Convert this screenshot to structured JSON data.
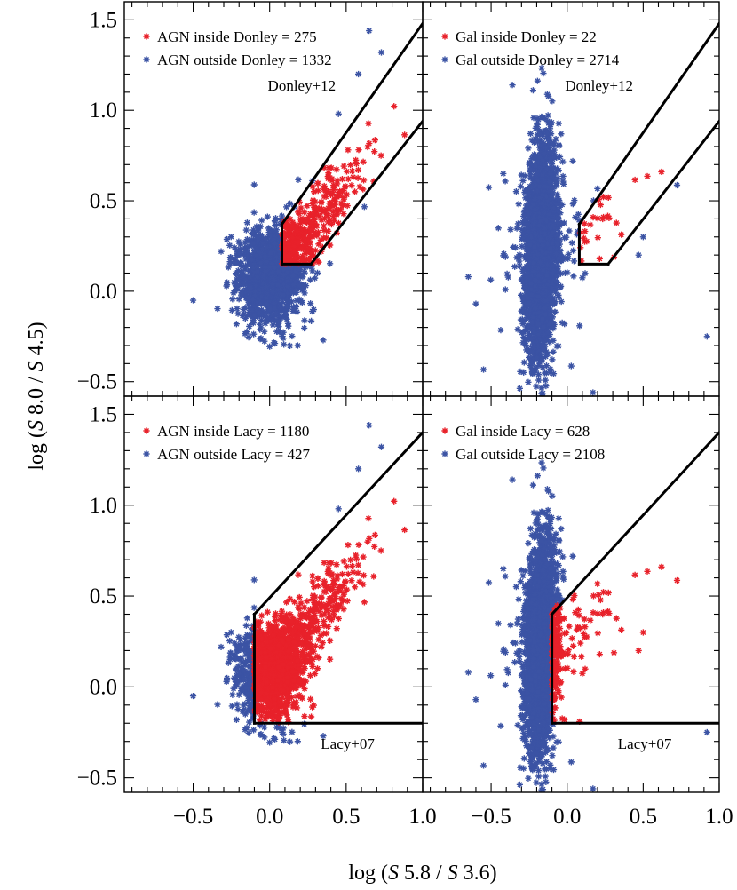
{
  "chart_data": {
    "type": "scatter",
    "xlabel": "log (S 5.8 / S 3.6)",
    "ylabel": "log (S 8.0 / S 4.5)",
    "xlim": [
      -0.95,
      1.0
    ],
    "ylim": [
      -0.58,
      1.6
    ],
    "xticks": [
      "−0.5",
      "0.0",
      "0.5",
      "1.0"
    ],
    "yticks": [
      "−0.5",
      "0.0",
      "0.5",
      "1.0",
      "1.5"
    ],
    "colors": {
      "inside": "#e8212a",
      "outside": "#3b53a4"
    },
    "panels": [
      {
        "id": "agn-donley",
        "population": "AGN",
        "legend": [
          {
            "text": "AGN inside Donley = 275",
            "color": "#e8212a",
            "symbol": "*"
          },
          {
            "text": "AGN outside Donley = 1332",
            "color": "#3b53a4",
            "symbol": "*"
          }
        ],
        "region_label": "Donley+12",
        "region_type": "donley",
        "counts": {
          "inside": 275,
          "outside": 1332
        }
      },
      {
        "id": "gal-donley",
        "population": "Gal",
        "legend": [
          {
            "text": "Gal inside Donley = 22",
            "color": "#e8212a",
            "symbol": "*"
          },
          {
            "text": "Gal outside Donley = 2714",
            "color": "#3b53a4",
            "symbol": "*"
          }
        ],
        "region_label": "Donley+12",
        "region_type": "donley",
        "counts": {
          "inside": 22,
          "outside": 2714
        }
      },
      {
        "id": "agn-lacy",
        "population": "AGN",
        "legend": [
          {
            "text": "AGN inside Lacy = 1180",
            "color": "#e8212a",
            "symbol": "*"
          },
          {
            "text": "AGN outside Lacy = 427",
            "color": "#3b53a4",
            "symbol": "*"
          }
        ],
        "region_label": "Lacy+07",
        "region_type": "lacy",
        "counts": {
          "inside": 1180,
          "outside": 427
        }
      },
      {
        "id": "gal-lacy",
        "population": "Gal",
        "legend": [
          {
            "text": "Gal inside Lacy = 628",
            "color": "#e8212a",
            "symbol": "*"
          },
          {
            "text": "Gal outside Lacy = 2108",
            "color": "#3b53a4",
            "symbol": "*"
          }
        ],
        "region_label": "Lacy+07",
        "region_type": "lacy",
        "counts": {
          "inside": 628,
          "outside": 2108
        }
      }
    ],
    "regions": {
      "donley": {
        "vertices": [
          [
            0.08,
            0.15
          ],
          [
            0.08,
            0.36
          ],
          [
            0.85,
            1.47
          ],
          [
            1.0,
            1.47
          ],
          [
            1.0,
            0.93
          ],
          [
            0.27,
            0.15
          ]
        ],
        "lines": [
          {
            "x": [
              0.08,
              0.08
            ],
            "y": [
              0.15,
              0.37
            ]
          },
          {
            "x": [
              0.08,
              0.27
            ],
            "y": [
              0.15,
              0.15
            ]
          },
          {
            "x": [
              0.08,
              1.0
            ],
            "y": [
              0.37,
              1.48
            ]
          },
          {
            "x": [
              0.27,
              1.0
            ],
            "y": [
              0.15,
              0.94
            ]
          }
        ]
      },
      "lacy": {
        "lines": [
          {
            "x": [
              -0.1,
              -0.1
            ],
            "y": [
              -0.2,
              0.4
            ]
          },
          {
            "x": [
              -0.1,
              1.0
            ],
            "y": [
              -0.2,
              -0.2
            ]
          },
          {
            "x": [
              -0.1,
              1.0
            ],
            "y": [
              0.4,
              1.4
            ]
          }
        ]
      }
    },
    "distributions": {
      "AGN": {
        "seed": 11,
        "n": 1607,
        "x_mean": 0.0,
        "x_sd": 0.11,
        "y_mean": 0.08,
        "y_sd": 0.13,
        "tail_frac": 0.28,
        "tail_slope": 1.05,
        "outliers": [
          [
            0.65,
            1.44
          ],
          [
            0.73,
            1.32
          ],
          [
            -0.5,
            -0.05
          ],
          [
            0.35,
            -0.27
          ],
          [
            0.58,
            1.2
          ],
          [
            0.45,
            0.98
          ]
        ]
      },
      "Gal": {
        "seed": 29,
        "n": 2736,
        "x_mean": -0.17,
        "x_sd": 0.05,
        "y_mean": 0.22,
        "y_sd": 0.28,
        "tail_frac": 0.03,
        "tail_slope": 0.4,
        "outliers": [
          [
            -0.36,
            1.14
          ],
          [
            0.62,
            0.66
          ],
          [
            -0.42,
            0.65
          ],
          [
            0.92,
            -0.25
          ],
          [
            -0.65,
            0.08
          ],
          [
            0.17,
            -0.56
          ],
          [
            -0.6,
            -0.07
          ],
          [
            0.5,
            0.3
          ],
          [
            0.47,
            0.2
          ]
        ]
      }
    }
  }
}
